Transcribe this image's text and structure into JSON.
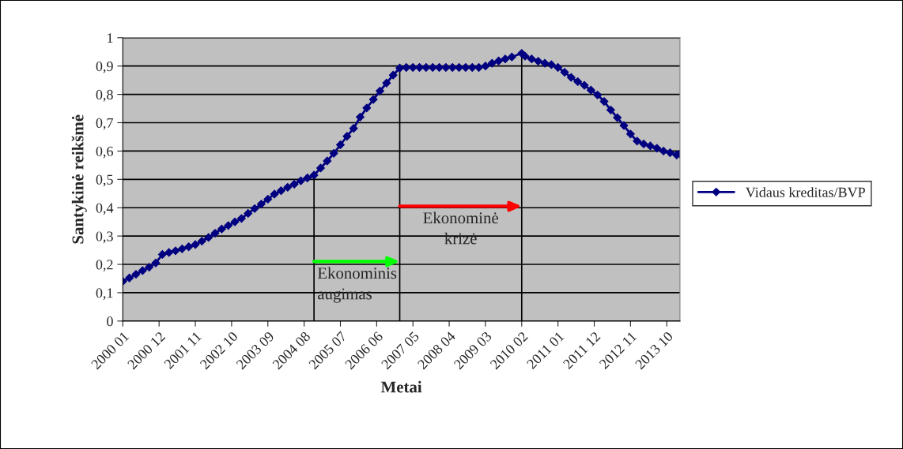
{
  "chart_data": {
    "type": "line",
    "xlabel": "Metai",
    "ylabel": "Santykinė reikšmė",
    "x": [
      "2000-01",
      "2000-03",
      "2000-05",
      "2000-07",
      "2000-09",
      "2000-11",
      "2001-01",
      "2001-03",
      "2001-05",
      "2001-07",
      "2001-09",
      "2001-11",
      "2002-01",
      "2002-03",
      "2002-05",
      "2002-07",
      "2002-09",
      "2002-11",
      "2003-01",
      "2003-03",
      "2003-05",
      "2003-07",
      "2003-09",
      "2003-11",
      "2004-01",
      "2004-03",
      "2004-05",
      "2004-07",
      "2004-09",
      "2004-11",
      "2005-01",
      "2005-03",
      "2005-05",
      "2005-07",
      "2005-09",
      "2005-11",
      "2006-01",
      "2006-03",
      "2006-05",
      "2006-07",
      "2006-09",
      "2006-11",
      "2007-01",
      "2007-03",
      "2007-05",
      "2007-07",
      "2007-09",
      "2007-11",
      "2008-01",
      "2008-03",
      "2008-05",
      "2008-07",
      "2008-09",
      "2008-11",
      "2009-01",
      "2009-03",
      "2009-05",
      "2009-07",
      "2009-09",
      "2009-11",
      "2010-02",
      "2010-03",
      "2010-05",
      "2010-07",
      "2010-09",
      "2010-11",
      "2011-01",
      "2011-03",
      "2011-05",
      "2011-07",
      "2011-09",
      "2011-11",
      "2012-01",
      "2012-03",
      "2012-05",
      "2012-07",
      "2012-09",
      "2012-11",
      "2013-01",
      "2013-03",
      "2013-05",
      "2013-07",
      "2013-09",
      "2013-11",
      "2014-01",
      "2014-02"
    ],
    "series": [
      {
        "name": "Vidaus kreditas/BVP",
        "color": "#000080",
        "values": [
          0.14,
          0.152,
          0.165,
          0.178,
          0.19,
          0.205,
          0.235,
          0.242,
          0.248,
          0.255,
          0.262,
          0.27,
          0.282,
          0.295,
          0.31,
          0.325,
          0.337,
          0.35,
          0.362,
          0.38,
          0.397,
          0.413,
          0.43,
          0.448,
          0.46,
          0.472,
          0.483,
          0.495,
          0.505,
          0.515,
          0.54,
          0.565,
          0.592,
          0.622,
          0.652,
          0.68,
          0.72,
          0.752,
          0.782,
          0.812,
          0.84,
          0.868,
          0.893,
          0.895,
          0.895,
          0.895,
          0.895,
          0.895,
          0.895,
          0.895,
          0.895,
          0.895,
          0.895,
          0.895,
          0.895,
          0.9,
          0.91,
          0.918,
          0.925,
          0.932,
          0.945,
          0.935,
          0.925,
          0.917,
          0.91,
          0.905,
          0.895,
          0.878,
          0.86,
          0.845,
          0.832,
          0.815,
          0.798,
          0.775,
          0.745,
          0.718,
          0.69,
          0.66,
          0.635,
          0.625,
          0.618,
          0.61,
          0.6,
          0.594,
          0.586,
          0.59
        ]
      }
    ],
    "xlim": [
      "2000-01",
      "2014-02"
    ],
    "xticks": [
      {
        "value": "2000-01",
        "label": "2000 01"
      },
      {
        "value": "2000-12",
        "label": "2000 12"
      },
      {
        "value": "2001-11",
        "label": "2001 11"
      },
      {
        "value": "2002-10",
        "label": "2002 10"
      },
      {
        "value": "2003-09",
        "label": "2003 09"
      },
      {
        "value": "2004-08",
        "label": "2004 08"
      },
      {
        "value": "2005-07",
        "label": "2005 07"
      },
      {
        "value": "2006-06",
        "label": "2006 06"
      },
      {
        "value": "2007-05",
        "label": "2007 05"
      },
      {
        "value": "2008-04",
        "label": "2008 04"
      },
      {
        "value": "2009-03",
        "label": "2009 03"
      },
      {
        "value": "2010-02",
        "label": "2010 02"
      },
      {
        "value": "2011-01",
        "label": "2011 01"
      },
      {
        "value": "2011-12",
        "label": "2011 12"
      },
      {
        "value": "2012-11",
        "label": "2012 11"
      },
      {
        "value": "2013-10",
        "label": "2013 10"
      }
    ],
    "ylim": [
      0,
      1
    ],
    "yticks": [
      0,
      {
        "value": 0.1,
        "label": "0,1"
      },
      {
        "value": 0.2,
        "label": "0,2"
      },
      {
        "value": 0.3,
        "label": "0,3"
      },
      {
        "value": 0.4,
        "label": "0,4"
      },
      {
        "value": 0.5,
        "label": "0,5"
      },
      {
        "value": 0.6,
        "label": "0,6"
      },
      {
        "value": 0.7,
        "label": "0,7"
      },
      {
        "value": 0.8,
        "label": "0,8"
      },
      {
        "value": 0.9,
        "label": "0,9"
      },
      1
    ],
    "ref_lines": [
      {
        "axis": "x",
        "value": "2004-11",
        "color": "#000000"
      },
      {
        "axis": "x",
        "value": "2007-01",
        "color": "#000000"
      },
      {
        "axis": "x",
        "value": "2010-02",
        "color": "#000000"
      }
    ],
    "annotations": [
      {
        "text": "Ekonominis\naugimas",
        "x": "2004-11",
        "y": 0.21
      },
      {
        "text": "Ekonominė\nkrizė",
        "x": "2007-01",
        "y": 0.405
      }
    ],
    "grid": "y",
    "legend": "right",
    "marker": "diamond",
    "line_style": "solid"
  }
}
